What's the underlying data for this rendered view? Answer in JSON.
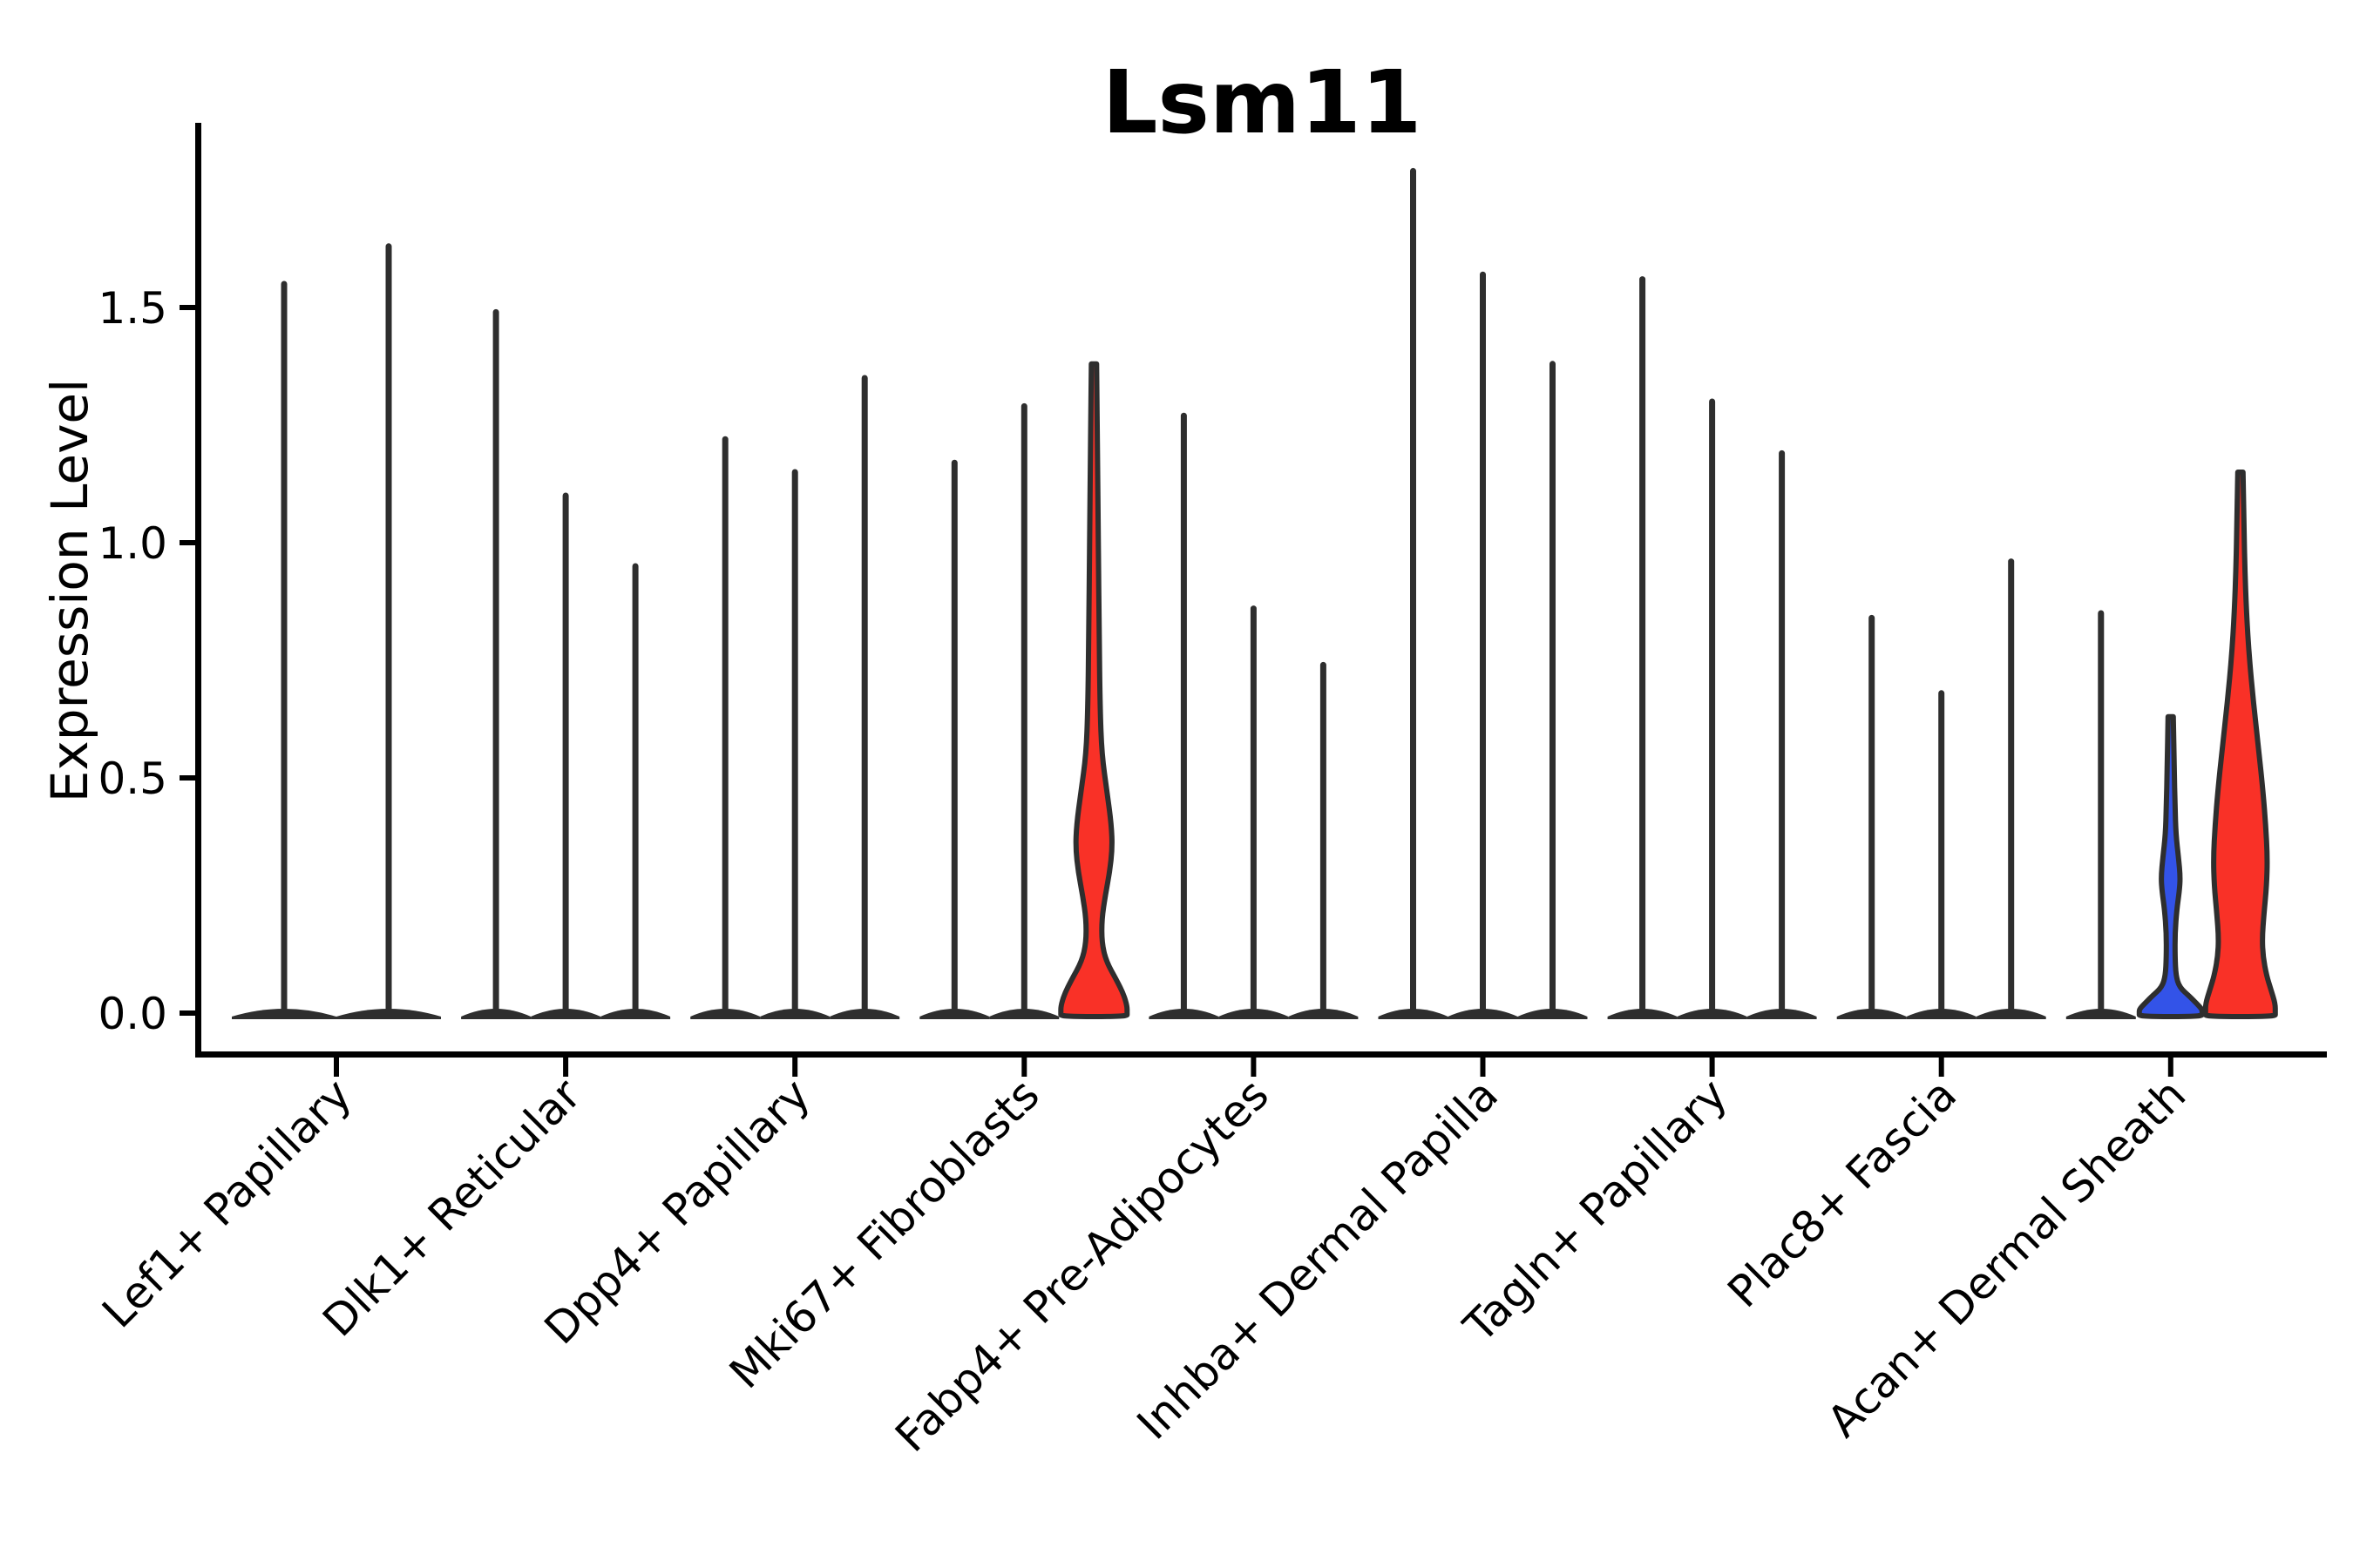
{
  "chart_data": {
    "type": "violin",
    "title": "Lsm11",
    "ylabel": "Expression Level",
    "xlabel": "",
    "grid": false,
    "legend": "none",
    "ylim": [
      -0.09,
      1.89
    ],
    "yticks": [
      {
        "label": "0.0",
        "value": 0.0
      },
      {
        "label": "0.5",
        "value": 0.5
      },
      {
        "label": "1.0",
        "value": 1.0
      },
      {
        "label": "1.5",
        "value": 1.5
      }
    ],
    "categories": [
      "Lef1+ Papillary",
      "Dlk1+ Reticular",
      "Dpp4+ Papillary",
      "Mki67+ Fibroblasts",
      "Fabp4+ Pre-Adipocytes",
      "Inhba+ Dermal Papilla",
      "Tagln+ Papillary",
      "Plac8+ Fascia",
      "Acan+ Dermal Sheath"
    ],
    "groups": [
      {
        "category": "Lef1+ Papillary",
        "violins": [
          {
            "color": "black",
            "height": 1.55
          },
          {
            "color": "black",
            "height": 1.63
          }
        ]
      },
      {
        "category": "Dlk1+ Reticular",
        "violins": [
          {
            "color": "black",
            "height": 1.49
          },
          {
            "color": "black",
            "height": 1.1
          },
          {
            "color": "black",
            "height": 0.95
          }
        ]
      },
      {
        "category": "Dpp4+ Papillary",
        "violins": [
          {
            "color": "black",
            "height": 1.22
          },
          {
            "color": "black",
            "height": 1.15
          },
          {
            "color": "black",
            "height": 1.35
          }
        ]
      },
      {
        "category": "Mki67+ Fibroblasts",
        "violins": [
          {
            "color": "black",
            "height": 1.17
          },
          {
            "color": "black",
            "height": 1.29
          },
          {
            "color": "red",
            "height": 1.38,
            "profile": "mki67_red"
          }
        ]
      },
      {
        "category": "Fabp4+ Pre-Adipocytes",
        "violins": [
          {
            "color": "black",
            "height": 1.27
          },
          {
            "color": "black",
            "height": 0.86
          },
          {
            "color": "black",
            "height": 0.74
          }
        ]
      },
      {
        "category": "Inhba+ Dermal Papilla",
        "violins": [
          {
            "color": "black",
            "height": 1.79
          },
          {
            "color": "black",
            "height": 1.57
          },
          {
            "color": "black",
            "height": 1.38
          }
        ]
      },
      {
        "category": "Tagln+ Papillary",
        "violins": [
          {
            "color": "black",
            "height": 1.56
          },
          {
            "color": "black",
            "height": 1.3
          },
          {
            "color": "black",
            "height": 1.19
          }
        ]
      },
      {
        "category": "Plac8+ Fascia",
        "violins": [
          {
            "color": "black",
            "height": 0.84
          },
          {
            "color": "black",
            "height": 0.68
          },
          {
            "color": "black",
            "height": 0.96
          }
        ]
      },
      {
        "category": "Acan+ Dermal Sheath",
        "violins": [
          {
            "color": "black",
            "height": 0.85
          },
          {
            "color": "blue",
            "height": 0.63,
            "profile": "acan_blue"
          },
          {
            "color": "red",
            "height": 1.15,
            "profile": "acan_red"
          }
        ]
      }
    ],
    "profiles": {
      "mki67_red": [
        [
          1.38,
          3
        ],
        [
          1.2,
          4
        ],
        [
          1.0,
          5
        ],
        [
          0.8,
          6
        ],
        [
          0.65,
          7
        ],
        [
          0.55,
          9
        ],
        [
          0.47,
          15
        ],
        [
          0.4,
          20
        ],
        [
          0.35,
          21
        ],
        [
          0.3,
          18
        ],
        [
          0.25,
          13
        ],
        [
          0.2,
          9
        ],
        [
          0.15,
          9
        ],
        [
          0.11,
          14
        ],
        [
          0.07,
          26
        ],
        [
          0.04,
          34
        ],
        [
          0.015,
          38
        ],
        [
          0.0,
          38
        ]
      ],
      "acan_blue": [
        [
          0.63,
          3
        ],
        [
          0.52,
          4
        ],
        [
          0.44,
          5
        ],
        [
          0.38,
          6
        ],
        [
          0.33,
          9
        ],
        [
          0.29,
          11
        ],
        [
          0.26,
          10
        ],
        [
          0.22,
          7
        ],
        [
          0.17,
          5
        ],
        [
          0.12,
          5
        ],
        [
          0.08,
          6
        ],
        [
          0.055,
          10
        ],
        [
          0.035,
          22
        ],
        [
          0.02,
          30
        ],
        [
          0.008,
          36
        ],
        [
          0.0,
          36
        ]
      ],
      "acan_red": [
        [
          1.15,
          3
        ],
        [
          1.05,
          4
        ],
        [
          0.95,
          5
        ],
        [
          0.85,
          7
        ],
        [
          0.76,
          10
        ],
        [
          0.66,
          15
        ],
        [
          0.56,
          21
        ],
        [
          0.47,
          26
        ],
        [
          0.4,
          29
        ],
        [
          0.33,
          31
        ],
        [
          0.27,
          30
        ],
        [
          0.21,
          27
        ],
        [
          0.16,
          25
        ],
        [
          0.12,
          26
        ],
        [
          0.08,
          30
        ],
        [
          0.05,
          35
        ],
        [
          0.02,
          40
        ],
        [
          0.0,
          40
        ]
      ]
    },
    "colors": {
      "violin_outline": "#2e2e2e",
      "red_fill": "#f93127",
      "blue_fill": "#3353e8",
      "axis": "#000000"
    }
  }
}
